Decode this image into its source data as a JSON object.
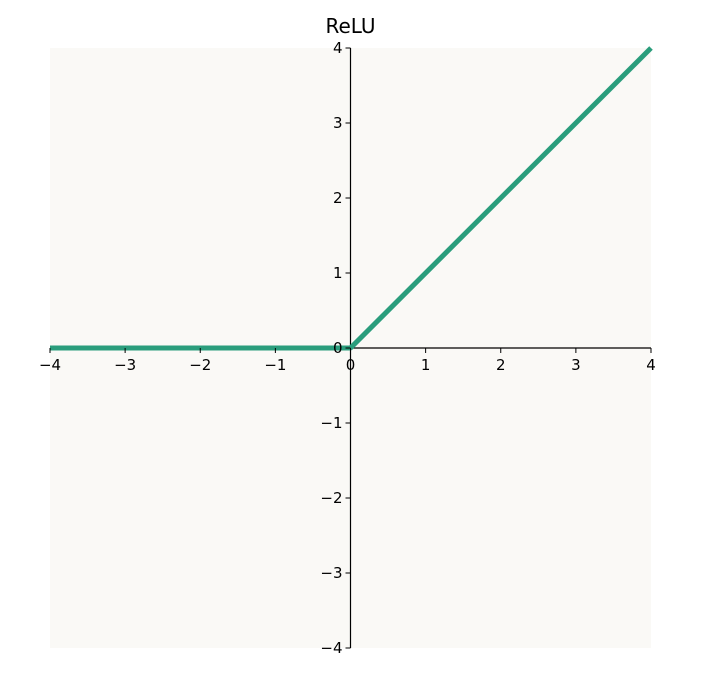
{
  "chart_data": {
    "type": "line",
    "title": "ReLU",
    "xlabel": "",
    "ylabel": "",
    "xlim": [
      -4,
      4
    ],
    "ylim": [
      -4,
      4
    ],
    "xticks": [
      -4,
      -3,
      -2,
      -1,
      0,
      1,
      2,
      3,
      4
    ],
    "yticks": [
      -4,
      -3,
      -2,
      -1,
      0,
      1,
      2,
      3,
      4
    ],
    "xtick_labels": [
      "−4",
      "−3",
      "−2",
      "−1",
      "0",
      "1",
      "2",
      "3",
      "4"
    ],
    "ytick_labels": [
      "−4",
      "−3",
      "−2",
      "−1",
      "0",
      "1",
      "2",
      "3",
      "4"
    ],
    "grid": false,
    "spines": "centered",
    "series": [
      {
        "x": [
          -4,
          0,
          4
        ],
        "y": [
          0,
          0,
          4
        ],
        "color": "#2a9d7c"
      }
    ],
    "colors": {
      "plot_background": "#faf9f6",
      "axis": "#000000"
    }
  }
}
